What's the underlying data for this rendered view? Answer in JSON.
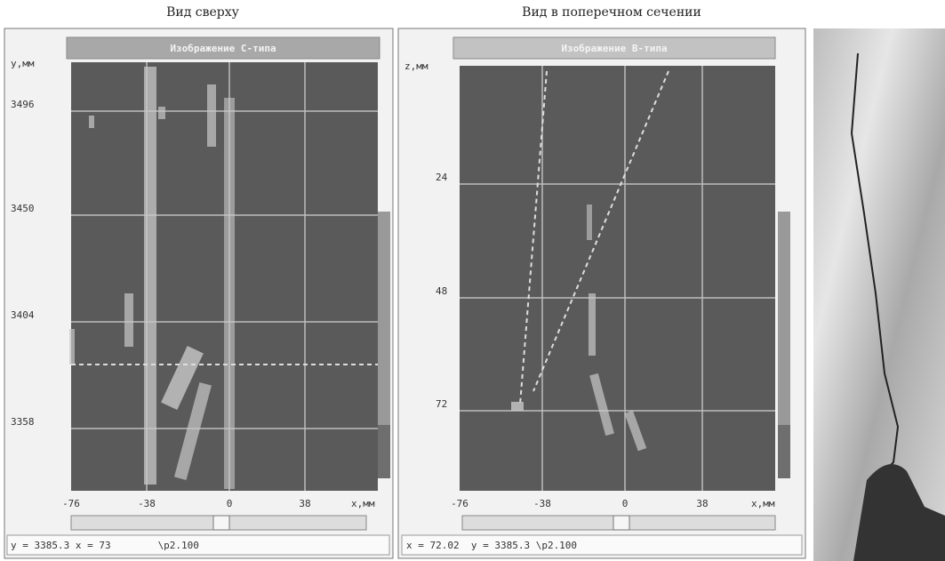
{
  "captions": [
    "Вид сверху",
    "Вид в поперечном сечении"
  ],
  "panels": [
    {
      "title": "Изображение C-типа",
      "y_label": "y,мм",
      "x_label": "x,мм",
      "y_ticks": [
        "3496",
        "3450",
        "3404",
        "3358"
      ],
      "x_ticks": [
        "-76",
        "-38",
        "0",
        "38"
      ],
      "status": "y = 3385.3 x = 73        \\p2.100"
    },
    {
      "title": "Изображение B-типа",
      "y_label": "z,мм",
      "x_label": "x,мм",
      "y_ticks": [
        "24",
        "48",
        "72"
      ],
      "x_ticks": [
        "-76",
        "-38",
        "0",
        "38"
      ],
      "status": "x = 72.02  y = 3385.3 \\p2.100"
    }
  ]
}
